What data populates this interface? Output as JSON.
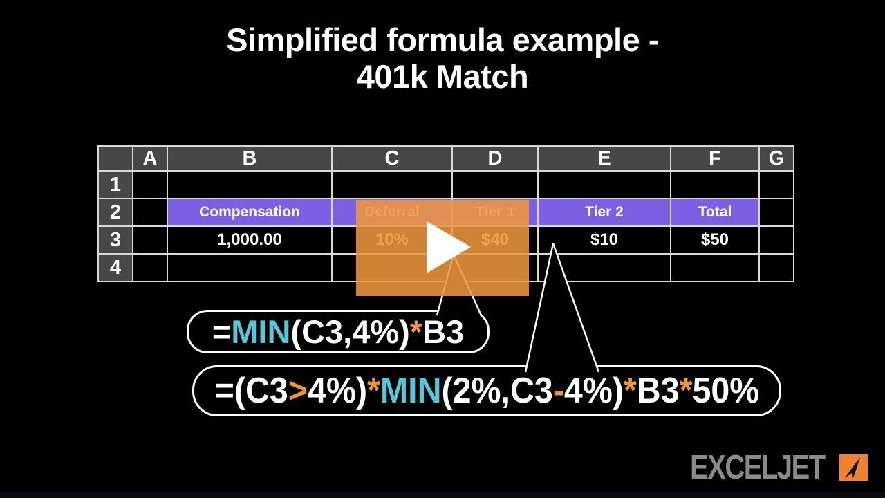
{
  "title": {
    "line1": "Simplified formula example -",
    "line2": "401k Match"
  },
  "table": {
    "column_headers": [
      "",
      "A",
      "B",
      "C",
      "D",
      "E",
      "F",
      "G"
    ],
    "rows": [
      {
        "num": "1",
        "cells": [
          "",
          "",
          "",
          "",
          "",
          "",
          ""
        ],
        "highlight": []
      },
      {
        "num": "2",
        "cells": [
          "",
          "Compensation",
          "Deferral",
          "Tier 1",
          "Tier 2",
          "Total",
          ""
        ],
        "highlight": [
          "B",
          "C",
          "D",
          "E",
          "F"
        ]
      },
      {
        "num": "3",
        "cells": [
          "",
          "1,000.00",
          "10%",
          "$40",
          "$10",
          "$50",
          ""
        ],
        "highlight": []
      },
      {
        "num": "4",
        "cells": [
          "",
          "",
          "",
          "",
          "",
          "",
          ""
        ],
        "highlight": []
      }
    ],
    "column_letters": [
      "A",
      "B",
      "C",
      "D",
      "E",
      "F",
      "G"
    ]
  },
  "formulas": {
    "tier1": {
      "full_text": "=MIN(C3,4%)*B3",
      "segments": [
        {
          "text": "=",
          "color": "w"
        },
        {
          "text": "MIN",
          "color": "cyan"
        },
        {
          "text": "(C3,4%)",
          "color": "w"
        },
        {
          "text": "*",
          "color": "orange"
        },
        {
          "text": "B3",
          "color": "w"
        }
      ]
    },
    "tier2": {
      "full_text": "=(C3>4%)*MIN(2%,C3-4%)*B3*50%",
      "segments": [
        {
          "text": "=(C3",
          "color": "w"
        },
        {
          "text": ">",
          "color": "orange"
        },
        {
          "text": "4%)",
          "color": "w"
        },
        {
          "text": "*",
          "color": "orange"
        },
        {
          "text": "MIN",
          "color": "cyan"
        },
        {
          "text": "(2%,C3",
          "color": "w"
        },
        {
          "text": "-",
          "color": "orange"
        },
        {
          "text": "4%)",
          "color": "w"
        },
        {
          "text": "*",
          "color": "orange"
        },
        {
          "text": "B3",
          "color": "w"
        },
        {
          "text": "*",
          "color": "orange"
        },
        {
          "text": "50%",
          "color": "w"
        }
      ]
    }
  },
  "player": {
    "play_icon": "play-triangle"
  },
  "logo": {
    "text": "EXCELJET",
    "mark_icon": "paper-plane"
  },
  "colors": {
    "purple": "#7d5fe3",
    "cyan": "#56c7d8",
    "orange": "#ec963c",
    "overlay": "rgba(236,150,60,0.88)",
    "header_gray": "#474747",
    "logo_gray": "#8a8a8a",
    "logo_orange": "#ee8230"
  }
}
